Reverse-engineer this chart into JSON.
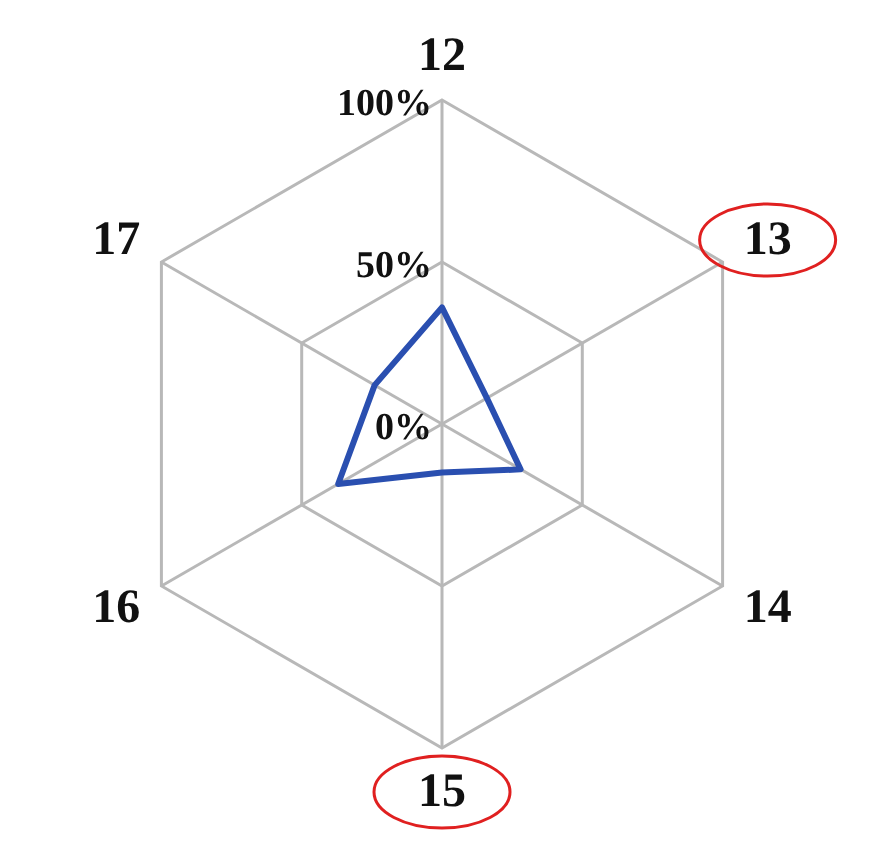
{
  "chart_data": {
    "type": "radar",
    "categories": [
      "12",
      "13",
      "14",
      "15",
      "16",
      "17"
    ],
    "series": [
      {
        "color": "#2a4fb0",
        "values": [
          36,
          16,
          28,
          15,
          37,
          24
        ]
      }
    ],
    "ylim": [
      0,
      100
    ],
    "yticks": [
      {
        "value": 0,
        "label": "0%"
      },
      {
        "value": 50,
        "label": "50%"
      },
      {
        "value": 100,
        "label": "100%"
      }
    ],
    "grid": true,
    "marker": "none"
  }
}
